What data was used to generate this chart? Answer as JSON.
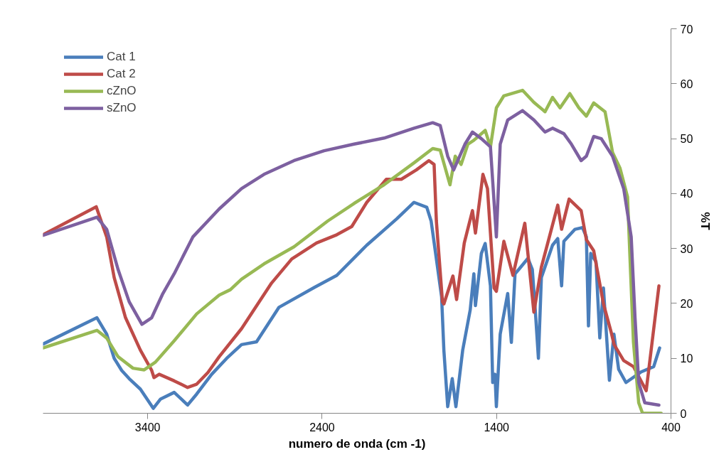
{
  "chart_data": {
    "type": "line",
    "xlabel": "numero de onda (cm -1)",
    "ylabel": "%T",
    "xlim": [
      4000,
      400
    ],
    "xticks": [
      3400,
      2400,
      1400,
      400
    ],
    "ylim": [
      0,
      70
    ],
    "yticks": [
      0,
      10,
      20,
      30,
      40,
      50,
      60,
      70
    ],
    "grid": false,
    "legend": "top left",
    "marker": "none",
    "line_style": "solid",
    "series": [
      {
        "name": "Cat 1",
        "color": "#4a7ebb",
        "x": [
          4000,
          3691,
          3635,
          3592,
          3549,
          3506,
          3442,
          3368,
          3326,
          3248,
          3171,
          3119,
          3033,
          2947,
          2862,
          2776,
          2647,
          2445,
          2316,
          2144,
          1972,
          1873,
          1800,
          1775,
          1715,
          1702,
          1680,
          1654,
          1633,
          1594,
          1551,
          1530,
          1521,
          1487,
          1465,
          1435,
          1422,
          1409,
          1401,
          1379,
          1336,
          1315,
          1294,
          1272,
          1220,
          1195,
          1178,
          1160,
          1143,
          1079,
          1049,
          1027,
          1014,
          950,
          907,
          885,
          873,
          860,
          830,
          808,
          787,
          753,
          727,
          700,
          658,
          573,
          499,
          465
        ],
        "values": [
          12.6,
          17.4,
          14.4,
          10.0,
          7.8,
          6.3,
          4.4,
          0.9,
          2.6,
          3.8,
          1.5,
          3.5,
          7.1,
          10.0,
          12.5,
          13.0,
          19.3,
          22.9,
          25.1,
          30.6,
          35.4,
          38.4,
          37.5,
          35.0,
          21.2,
          11.5,
          1.2,
          6.3,
          1.2,
          11.5,
          18.8,
          25.4,
          19.6,
          29.1,
          30.9,
          23.2,
          5.6,
          7.1,
          1.2,
          14.4,
          21.8,
          12.9,
          25.4,
          26.2,
          28.2,
          26.2,
          18.8,
          10.0,
          24.7,
          30.6,
          31.8,
          23.2,
          31.3,
          33.5,
          33.8,
          32.1,
          15.9,
          29.1,
          27.6,
          13.7,
          22.8,
          6.0,
          14.4,
          8.0,
          5.6,
          7.5,
          8.5,
          11.9
        ]
      },
      {
        "name": "Cat 2",
        "color": "#be4b48",
        "x": [
          4000,
          3695,
          3635,
          3592,
          3527,
          3442,
          3377,
          3364,
          3334,
          3248,
          3171,
          3119,
          3055,
          2990,
          2862,
          2690,
          2574,
          2432,
          2316,
          2230,
          2144,
          2032,
          1946,
          1860,
          1788,
          1758,
          1745,
          1710,
          1702,
          1650,
          1629,
          1585,
          1538,
          1521,
          1478,
          1452,
          1414,
          1401,
          1358,
          1306,
          1238,
          1186,
          1143,
          1049,
          1027,
          984,
          915,
          885,
          843,
          787,
          744,
          726,
          671,
          615,
          542,
          469
        ],
        "values": [
          32.5,
          37.6,
          32.1,
          24.7,
          17.4,
          11.5,
          7.8,
          6.5,
          7.1,
          5.9,
          4.7,
          5.3,
          7.4,
          10.3,
          15.4,
          23.7,
          28.1,
          31.0,
          32.5,
          34.0,
          38.4,
          42.6,
          42.6,
          44.3,
          46.0,
          45.3,
          35.0,
          20.3,
          19.9,
          25.0,
          20.7,
          31.0,
          36.9,
          32.8,
          43.5,
          40.9,
          22.8,
          22.2,
          31.3,
          25.1,
          34.6,
          18.4,
          26.6,
          37.9,
          33.5,
          39.0,
          36.9,
          31.6,
          29.6,
          19.9,
          14.9,
          12.5,
          9.6,
          8.5,
          4.1,
          23.2
        ]
      },
      {
        "name": "cZnO",
        "color": "#98b954",
        "x": [
          4000,
          3691,
          3635,
          3570,
          3484,
          3420,
          3356,
          3248,
          3119,
          2990,
          2926,
          2862,
          2733,
          2561,
          2368,
          2217,
          2045,
          1873,
          1766,
          1723,
          1667,
          1637,
          1603,
          1564,
          1530,
          1465,
          1435,
          1401,
          1358,
          1251,
          1186,
          1122,
          1079,
          1036,
          980,
          928,
          885,
          843,
          778,
          735,
          692,
          649,
          636,
          615,
          585,
          563,
          456
        ],
        "values": [
          11.9,
          15.1,
          13.7,
          10.3,
          8.2,
          7.9,
          9.3,
          13.2,
          18.1,
          21.5,
          22.5,
          24.4,
          27.2,
          30.3,
          35.0,
          38.2,
          41.6,
          45.6,
          48.2,
          47.9,
          41.6,
          46.8,
          45.3,
          49.0,
          49.7,
          51.5,
          48.5,
          55.6,
          57.8,
          58.8,
          56.6,
          54.9,
          57.5,
          55.6,
          58.2,
          55.6,
          54.1,
          56.5,
          54.9,
          47.5,
          44.6,
          39.4,
          29.1,
          12.9,
          1.9,
          0,
          0
        ]
      },
      {
        "name": "sZnO",
        "color": "#7d60a0",
        "x": [
          4000,
          3691,
          3635,
          3570,
          3506,
          3433,
          3377,
          3313,
          3248,
          3141,
          2990,
          2862,
          2733,
          2561,
          2389,
          2217,
          2045,
          1873,
          1766,
          1723,
          1680,
          1646,
          1581,
          1538,
          1487,
          1435,
          1401,
          1379,
          1336,
          1251,
          1186,
          1122,
          1079,
          1014,
          971,
          915,
          885,
          843,
          800,
          735,
          671,
          628,
          606,
          585,
          550,
          469
        ],
        "values": [
          32.4,
          35.7,
          33.5,
          26.2,
          20.3,
          16.2,
          17.4,
          21.8,
          25.4,
          32.1,
          37.2,
          40.9,
          43.5,
          46.0,
          47.8,
          49.0,
          50.1,
          51.9,
          52.9,
          52.4,
          46.8,
          44.3,
          49.0,
          51.2,
          50.0,
          48.5,
          32.1,
          49.0,
          53.4,
          55.1,
          53.4,
          51.2,
          51.9,
          50.9,
          49.0,
          46.0,
          46.8,
          50.4,
          50.0,
          46.8,
          40.9,
          32.1,
          17.4,
          5.6,
          1.9,
          1.5
        ]
      }
    ]
  }
}
